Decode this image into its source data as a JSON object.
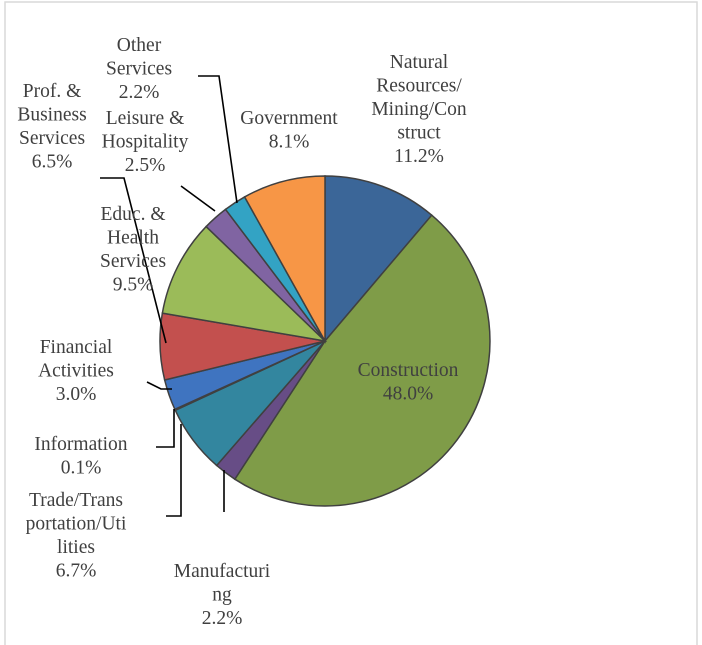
{
  "chart_data": {
    "type": "pie",
    "title": "",
    "slices": [
      {
        "label_lines": [
          "Natural",
          "Resources/",
          "Mining/Con",
          "struct"
        ],
        "value_text": "11.2%",
        "value": 11.2,
        "color": "#3b6698"
      },
      {
        "label_lines": [
          "Construction"
        ],
        "value_text": "48.0%",
        "value": 48.0,
        "color": "#7f9c48"
      },
      {
        "label_lines": [
          "Manufacturi",
          "ng"
        ],
        "value_text": "2.2%",
        "value": 2.2,
        "color": "#674d86"
      },
      {
        "label_lines": [
          "Trade/Trans",
          "portation/Uti",
          "lities"
        ],
        "value_text": "6.7%",
        "value": 6.7,
        "color": "#33869f"
      },
      {
        "label_lines": [
          "Information"
        ],
        "value_text": "0.1%",
        "value": 0.1,
        "color": "#e2822f"
      },
      {
        "label_lines": [
          "Financial",
          "Activities"
        ],
        "value_text": "3.0%",
        "value": 3.0,
        "color": "#3f74c0"
      },
      {
        "label_lines": [
          "Prof. &",
          "Business",
          "Services"
        ],
        "value_text": "6.5%",
        "value": 6.5,
        "color": "#c3504e"
      },
      {
        "label_lines": [
          "Educ. &",
          "Health",
          "Services"
        ],
        "value_text": "9.5%",
        "value": 9.5,
        "color": "#9bbb59"
      },
      {
        "label_lines": [
          "Leisure &",
          "Hospitality"
        ],
        "value_text": "2.5%",
        "value": 2.5,
        "color": "#8064a2"
      },
      {
        "label_lines": [
          "Other",
          "Services"
        ],
        "value_text": "2.2%",
        "value": 2.2,
        "color": "#33a3c4"
      },
      {
        "label_lines": [
          "Government"
        ],
        "value_text": "8.1%",
        "value": 8.1,
        "color": "#f79646"
      }
    ]
  }
}
